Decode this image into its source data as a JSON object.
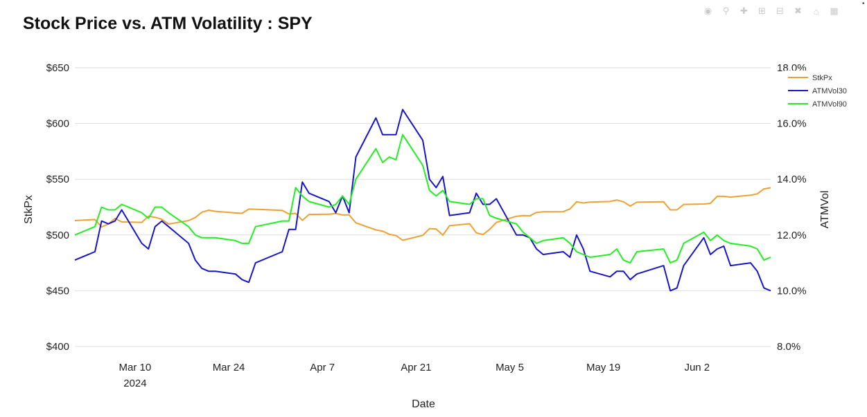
{
  "title": "Stock Price vs. ATM Volatility : SPY",
  "toolbar": {
    "icons": [
      "camera-icon",
      "zoom-icon",
      "pan-icon",
      "zoom-in-icon",
      "zoom-out-icon",
      "autoscale-icon",
      "reset-axes-icon",
      "plotly-logo-icon"
    ]
  },
  "chart_data": {
    "type": "line",
    "xlabel": "Date",
    "ylabel": "StkPx",
    "y2label": "ATMVol",
    "x_ticks": [
      "Mar 10",
      "Mar 24",
      "Apr 7",
      "Apr 21",
      "May 5",
      "May 19",
      "Jun 2"
    ],
    "x_year_label": "2024",
    "y_ticks": [
      "$400",
      "$450",
      "$500",
      "$550",
      "$600",
      "$650"
    ],
    "y2_ticks": [
      "8.0%",
      "10.0%",
      "12.0%",
      "14.0%",
      "16.0%",
      "18.0%"
    ],
    "ylim": [
      400,
      650
    ],
    "y2lim": [
      8.0,
      18.0
    ],
    "xlim": [
      "2024-03-01",
      "2024-06-13"
    ],
    "grid": true,
    "legend_position": "top-right",
    "colors": {
      "StkPx": "#F0A030",
      "ATMVol30": "#1515CC",
      "ATMVol90": "#22EE22"
    },
    "x": [
      "2024-03-01",
      "2024-03-04",
      "2024-03-05",
      "2024-03-06",
      "2024-03-07",
      "2024-03-08",
      "2024-03-11",
      "2024-03-12",
      "2024-03-13",
      "2024-03-14",
      "2024-03-15",
      "2024-03-18",
      "2024-03-19",
      "2024-03-20",
      "2024-03-21",
      "2024-03-22",
      "2024-03-25",
      "2024-03-26",
      "2024-03-27",
      "2024-03-28",
      "2024-04-01",
      "2024-04-02",
      "2024-04-03",
      "2024-04-04",
      "2024-04-05",
      "2024-04-08",
      "2024-04-09",
      "2024-04-10",
      "2024-04-11",
      "2024-04-12",
      "2024-04-15",
      "2024-04-16",
      "2024-04-17",
      "2024-04-18",
      "2024-04-19",
      "2024-04-22",
      "2024-04-23",
      "2024-04-24",
      "2024-04-25",
      "2024-04-26",
      "2024-04-29",
      "2024-04-30",
      "2024-05-01",
      "2024-05-02",
      "2024-05-03",
      "2024-05-06",
      "2024-05-07",
      "2024-05-08",
      "2024-05-09",
      "2024-05-10",
      "2024-05-13",
      "2024-05-14",
      "2024-05-15",
      "2024-05-16",
      "2024-05-17",
      "2024-05-20",
      "2024-05-21",
      "2024-05-22",
      "2024-05-23",
      "2024-05-24",
      "2024-05-28",
      "2024-05-29",
      "2024-05-30",
      "2024-05-31",
      "2024-06-03",
      "2024-06-04",
      "2024-06-05",
      "2024-06-06",
      "2024-06-07",
      "2024-06-10",
      "2024-06-11",
      "2024-06-12",
      "2024-06-13"
    ],
    "series": [
      {
        "name": "StkPx",
        "axis": "y",
        "values": [
          512.9,
          513.9,
          507.2,
          509.8,
          514.8,
          511.7,
          511.3,
          516.8,
          515.9,
          514.0,
          509.8,
          512.9,
          515.7,
          520.5,
          522.2,
          521.2,
          519.8,
          519.4,
          523.2,
          523.1,
          522.1,
          518.8,
          519.4,
          513.1,
          518.4,
          518.7,
          519.3,
          518.0,
          518.0,
          510.9,
          504.5,
          503.5,
          500.6,
          499.5,
          495.2,
          499.7,
          505.7,
          505.4,
          499.9,
          508.3,
          510.1,
          501.9,
          500.4,
          505.0,
          511.3,
          516.8,
          517.4,
          517.2,
          520.2,
          520.8,
          520.9,
          523.3,
          529.8,
          528.7,
          529.5,
          530.0,
          531.4,
          529.8,
          525.9,
          529.4,
          529.8,
          522.5,
          522.6,
          527.4,
          527.8,
          528.4,
          534.7,
          534.7,
          534.0,
          535.7,
          536.9,
          541.4,
          542.4
        ]
      },
      {
        "name": "ATMVol30",
        "axis": "y2",
        "values": [
          11.1,
          11.4,
          12.5,
          12.4,
          12.5,
          12.9,
          11.7,
          11.5,
          12.3,
          12.5,
          12.3,
          11.7,
          11.1,
          10.8,
          10.7,
          10.7,
          10.6,
          10.4,
          10.3,
          11.0,
          11.4,
          12.2,
          12.2,
          13.9,
          13.5,
          13.2,
          12.8,
          13.4,
          12.8,
          14.8,
          16.2,
          15.6,
          15.6,
          15.6,
          16.5,
          15.4,
          14.0,
          13.7,
          14.1,
          12.7,
          12.8,
          13.5,
          13.1,
          13.1,
          13.3,
          12.0,
          12.0,
          11.9,
          11.5,
          11.3,
          11.4,
          11.2,
          12.0,
          11.5,
          10.7,
          10.5,
          10.7,
          10.7,
          10.4,
          10.6,
          10.9,
          10.0,
          10.1,
          10.9,
          11.9,
          11.3,
          11.5,
          11.6,
          10.9,
          11.0,
          10.7,
          10.1,
          10.0
        ]
      },
      {
        "name": "ATMVol90",
        "axis": "y2",
        "values": [
          12.0,
          12.3,
          13.0,
          12.9,
          12.9,
          13.1,
          12.8,
          12.6,
          13.0,
          13.0,
          12.8,
          12.3,
          12.0,
          11.9,
          11.9,
          11.9,
          11.8,
          11.7,
          11.7,
          12.3,
          12.5,
          12.5,
          13.7,
          13.4,
          13.2,
          13.0,
          13.1,
          13.4,
          13.1,
          14.0,
          15.1,
          14.6,
          14.8,
          14.7,
          15.6,
          14.5,
          13.6,
          13.4,
          13.6,
          13.2,
          13.1,
          13.3,
          13.3,
          12.7,
          12.6,
          12.4,
          12.1,
          11.9,
          11.7,
          11.8,
          11.9,
          11.7,
          11.4,
          11.3,
          11.2,
          11.3,
          11.5,
          11.1,
          11.0,
          11.4,
          11.5,
          11.0,
          11.1,
          11.7,
          12.1,
          11.8,
          12.0,
          11.8,
          11.7,
          11.6,
          11.5,
          11.1,
          11.2
        ]
      }
    ]
  }
}
